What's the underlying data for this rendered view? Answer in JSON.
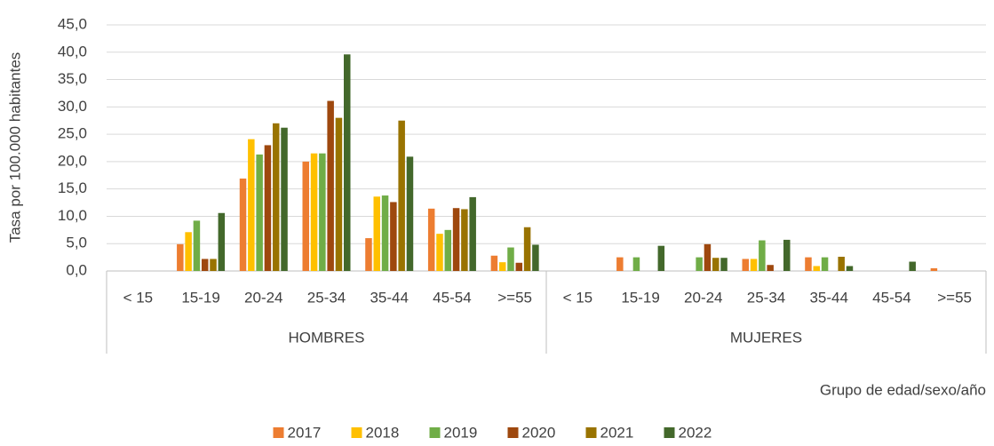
{
  "chart_data": {
    "type": "bar",
    "y_label": "Tasa por 100.000 habitantes",
    "x_label": "Grupo de edad/sexo/año",
    "groups": [
      "HOMBRES",
      "MUJERES"
    ],
    "categories": [
      "< 15",
      "15-19",
      "20-24",
      "25-34",
      "35-44",
      "45-54",
      ">=55",
      "< 15",
      "15-19",
      "20-24",
      "25-34",
      "35-44",
      "45-54",
      ">=55"
    ],
    "series": [
      {
        "name": "2017",
        "color": "#ed7d31",
        "values": [
          0,
          4.9,
          16.9,
          20.0,
          6.0,
          11.4,
          2.8,
          0,
          2.5,
          0,
          2.2,
          2.5,
          0,
          0.5
        ]
      },
      {
        "name": "2018",
        "color": "#ffc000",
        "values": [
          0,
          7.1,
          24.1,
          21.5,
          13.6,
          6.8,
          1.6,
          0,
          0,
          0,
          2.2,
          0.9,
          0,
          0
        ]
      },
      {
        "name": "2019",
        "color": "#70ad47",
        "values": [
          0,
          9.2,
          21.3,
          21.5,
          13.8,
          7.5,
          4.3,
          0,
          2.5,
          2.5,
          5.6,
          2.5,
          0,
          0
        ]
      },
      {
        "name": "2020",
        "color": "#9e480e",
        "values": [
          0,
          2.2,
          23.0,
          31.1,
          12.6,
          11.5,
          1.5,
          0,
          0,
          4.9,
          1.1,
          0,
          0,
          0
        ]
      },
      {
        "name": "2021",
        "color": "#997300",
        "values": [
          0,
          2.2,
          27.0,
          28.0,
          27.5,
          11.3,
          8.0,
          0,
          0,
          2.4,
          0,
          2.6,
          0,
          0
        ]
      },
      {
        "name": "2022",
        "color": "#43682b",
        "values": [
          0,
          10.6,
          26.2,
          39.6,
          20.9,
          13.5,
          4.8,
          0,
          4.6,
          2.4,
          5.7,
          0.9,
          1.7,
          0
        ]
      }
    ],
    "ylim": [
      0,
      45
    ],
    "yticks": [
      {
        "value": 0,
        "label": "0,0"
      },
      {
        "value": 5,
        "label": "5,0"
      },
      {
        "value": 10,
        "label": "10,0"
      },
      {
        "value": 15,
        "label": "15,0"
      },
      {
        "value": 20,
        "label": "20,0"
      },
      {
        "value": 25,
        "label": "25,0"
      },
      {
        "value": 30,
        "label": "30,0"
      },
      {
        "value": 35,
        "label": "35,0"
      },
      {
        "value": 40,
        "label": "40,0"
      },
      {
        "value": 45,
        "label": "45,0"
      }
    ],
    "grid": true,
    "legend": "bottom"
  }
}
